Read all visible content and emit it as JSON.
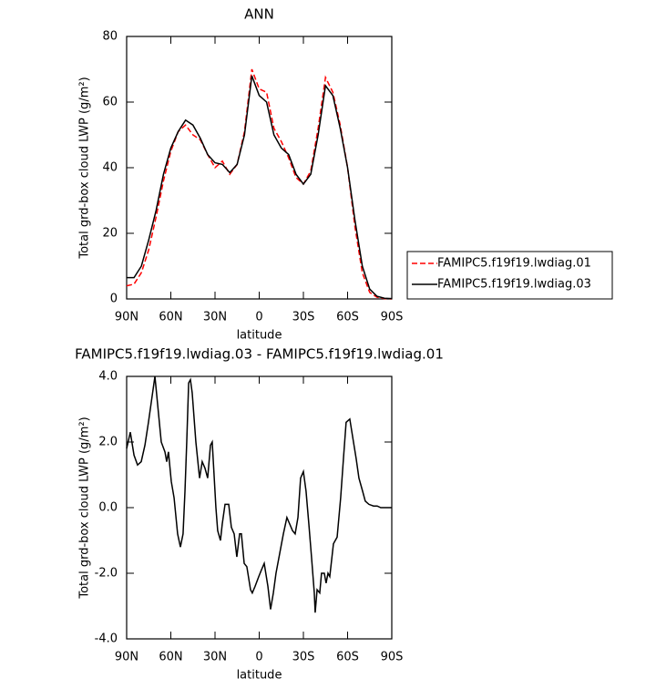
{
  "chart_data": [
    {
      "type": "line",
      "title": "ANN",
      "xlabel": "latitude",
      "ylabel": "Total grd-box cloud LWP (g/m²)",
      "x": [
        90,
        85,
        80,
        75,
        70,
        65,
        60,
        55,
        50,
        45,
        40,
        35,
        30,
        25,
        20,
        15,
        10,
        5,
        0,
        -5,
        -10,
        -15,
        -20,
        -25,
        -30,
        -35,
        -40,
        -45,
        -50,
        -55,
        -60,
        -65,
        -70,
        -75,
        -80,
        -85,
        -90
      ],
      "series": [
        {
          "name": "FAMIPC5.f19f19.lwdiag.01",
          "color": "#ff0000",
          "dash": true,
          "values": [
            4,
            4.5,
            8,
            15,
            25,
            36,
            45,
            51,
            53,
            50,
            48.5,
            44,
            40,
            42,
            38,
            41,
            51,
            70,
            64,
            63,
            52,
            48,
            43,
            37,
            35,
            39,
            52,
            67.5,
            63,
            53,
            40,
            22,
            8,
            2,
            0.5,
            0.1,
            0
          ]
        },
        {
          "name": "FAMIPC5.f19f19.lwdiag.03",
          "color": "#000000",
          "dash": false,
          "values": [
            6.5,
            6.5,
            10,
            18,
            27,
            38,
            46,
            51,
            54.5,
            53,
            49,
            44,
            41.5,
            41,
            38.5,
            41,
            50,
            68,
            62,
            60,
            50,
            46,
            44,
            38,
            35,
            38,
            50,
            65,
            62,
            52,
            40,
            24,
            10,
            3,
            0.8,
            0.2,
            0.1
          ]
        }
      ],
      "xlim": [
        90,
        -90
      ],
      "ylim": [
        0,
        80
      ],
      "xticks": [
        {
          "value": 90,
          "label": "90N"
        },
        {
          "value": 60,
          "label": "60N"
        },
        {
          "value": 30,
          "label": "30N"
        },
        0,
        {
          "value": -30,
          "label": "30S"
        },
        {
          "value": -60,
          "label": "60S"
        },
        {
          "value": -90,
          "label": "90S"
        }
      ],
      "yticks": [
        0,
        20,
        40,
        60,
        80
      ],
      "legend": "right"
    },
    {
      "type": "line",
      "title": "FAMIPC5.f19f19.lwdiag.03 - FAMIPC5.f19f19.lwdiag.01",
      "xlabel": "latitude",
      "ylabel": "Total grd-box cloud LWP (g/m²)",
      "x": [
        90,
        87.5,
        85,
        82.6,
        80.1,
        77.6,
        75.2,
        70.8,
        66.5,
        64,
        62.8,
        61.6,
        59.7,
        57.8,
        55.4,
        53.5,
        51.7,
        50.4,
        49.2,
        47.9,
        46.7,
        45.5,
        43,
        40.5,
        38.7,
        36.8,
        35,
        33.1,
        31.9,
        29.4,
        28.2,
        26.3,
        25.1,
        23.2,
        20.7,
        18.9,
        17,
        15.2,
        13.3,
        12.1,
        10.2,
        8.4,
        5.9,
        4.7,
        2.8,
        0.3,
        -1.5,
        -3.4,
        -5.9,
        -7.7,
        -9.6,
        -11.4,
        -13.9,
        -16.4,
        -18.8,
        -20.7,
        -22.6,
        -24.4,
        -26.3,
        -28.1,
        -30,
        -31.8,
        -33.7,
        -35.5,
        -37.4,
        -38,
        -39.3,
        -41.1,
        -42.3,
        -44.2,
        -45.4,
        -46.7,
        -47.9,
        -50.4,
        -52.9,
        -55.3,
        -57.2,
        -59,
        -61.5,
        -64,
        -65.8,
        -67.7,
        -70.2,
        -72,
        -74.5,
        -77.6,
        -80.1,
        -82.5,
        -85.6,
        -90
      ],
      "series": [
        {
          "color": "#000000",
          "dash": false,
          "values": [
            1.8,
            2.3,
            1.6,
            1.3,
            1.4,
            1.9,
            2.6,
            4.0,
            2.0,
            1.7,
            1.4,
            1.7,
            0.8,
            0.3,
            -0.8,
            -1.2,
            -0.8,
            0.5,
            2.0,
            3.8,
            3.9,
            3.5,
            2.0,
            0.9,
            1.4,
            1.2,
            0.9,
            1.9,
            2.0,
            0.0,
            -0.7,
            -1.0,
            -0.5,
            0.1,
            0.1,
            -0.6,
            -0.8,
            -1.5,
            -0.8,
            -0.8,
            -1.7,
            -1.8,
            -2.5,
            -2.6,
            -2.4,
            -2.1,
            -1.9,
            -1.7,
            -2.4,
            -3.1,
            -2.6,
            -2.0,
            -1.4,
            -0.8,
            -0.3,
            -0.5,
            -0.7,
            -0.8,
            -0.3,
            0.9,
            1.1,
            0.5,
            -0.5,
            -1.5,
            -2.6,
            -3.2,
            -2.5,
            -2.6,
            -2.0,
            -2.0,
            -2.3,
            -2.0,
            -2.1,
            -1.1,
            -0.9,
            0.3,
            1.5,
            2.6,
            2.7,
            2.0,
            1.5,
            0.9,
            0.5,
            0.2,
            0.1,
            0.05,
            0.05,
            0,
            0,
            0
          ]
        }
      ],
      "xlim": [
        90,
        -90
      ],
      "ylim": [
        -4,
        4
      ],
      "xticks": [
        {
          "value": 90,
          "label": "90N"
        },
        {
          "value": 60,
          "label": "60N"
        },
        {
          "value": 30,
          "label": "30N"
        },
        0,
        {
          "value": -30,
          "label": "30S"
        },
        {
          "value": -60,
          "label": "60S"
        },
        {
          "value": -90,
          "label": "90S"
        }
      ],
      "yticks": [
        {
          "value": 4,
          "label": "4.0"
        },
        {
          "value": 2,
          "label": "2.0"
        },
        {
          "value": 0,
          "label": "0.0"
        },
        {
          "value": -2,
          "label": "-2.0"
        },
        {
          "value": -4,
          "label": "-4.0"
        }
      ]
    }
  ]
}
